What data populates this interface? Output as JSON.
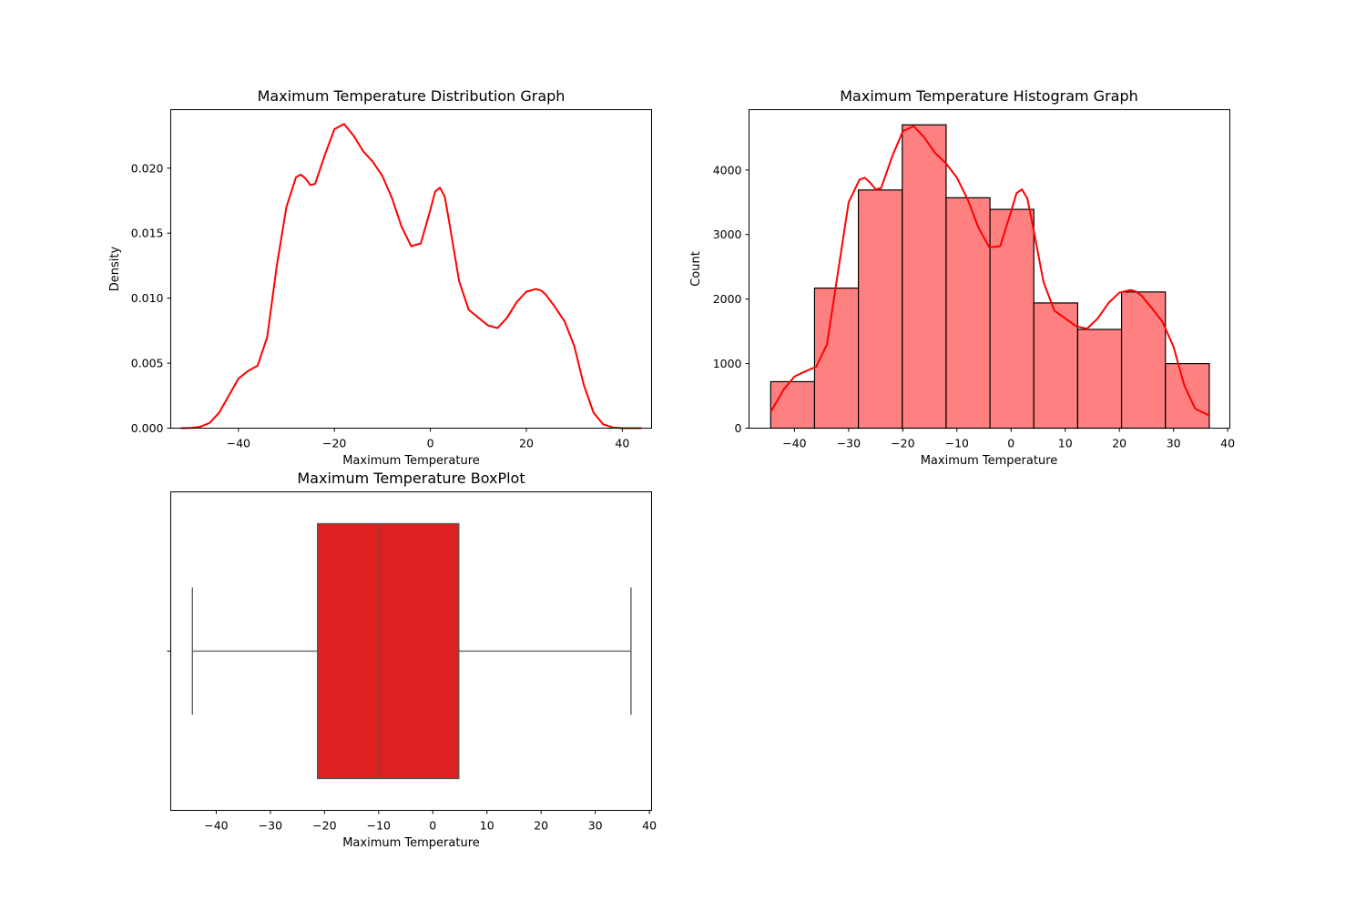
{
  "colors": {
    "kde_line": "#ff0000",
    "hist_fill": "#ff8080",
    "box_fill": "#df2020",
    "box_line": "#555555"
  },
  "chart_data": [
    {
      "type": "line",
      "title": "Maximum Temperature Distribution Graph",
      "xlabel": "Maximum Temperature",
      "ylabel": "Density",
      "xlim": [
        -54.1,
        46.1
      ],
      "ylim": [
        0,
        0.0245
      ],
      "xticks": [
        -40,
        -20,
        0,
        20,
        40
      ],
      "xtick_labels": [
        "−40",
        "−20",
        "0",
        "20",
        "40"
      ],
      "yticks": [
        0,
        0.005,
        0.01,
        0.015,
        0.02
      ],
      "ytick_labels": [
        "0.000",
        "0.005",
        "0.010",
        "0.015",
        "0.020"
      ],
      "grid": false,
      "series": [
        {
          "color": "#ff0000",
          "x": [
            -52,
            -50,
            -48,
            -46,
            -44,
            -42,
            -40,
            -38,
            -36,
            -34,
            -32,
            -30,
            -28,
            -27,
            -26,
            -25,
            -24,
            -22,
            -20,
            -18,
            -16,
            -14,
            -12,
            -10,
            -8,
            -6,
            -4,
            -2,
            0,
            1,
            2,
            3,
            4,
            6,
            8,
            10,
            12,
            14,
            16,
            18,
            20,
            22,
            23,
            24,
            26,
            28,
            30,
            32,
            34,
            36,
            38,
            40,
            42,
            44
          ],
          "y": [
            0.0,
            2e-05,
            0.0001,
            0.0004,
            0.0012,
            0.0025,
            0.0038,
            0.0044,
            0.0048,
            0.007,
            0.0125,
            0.017,
            0.0193,
            0.0195,
            0.0192,
            0.0187,
            0.0188,
            0.021,
            0.023,
            0.0234,
            0.0225,
            0.0213,
            0.0205,
            0.0194,
            0.0177,
            0.0155,
            0.014,
            0.0142,
            0.0168,
            0.0182,
            0.0185,
            0.0178,
            0.0157,
            0.0113,
            0.0091,
            0.0085,
            0.0079,
            0.0077,
            0.0085,
            0.0097,
            0.0105,
            0.0107,
            0.0106,
            0.0103,
            0.0093,
            0.0082,
            0.0063,
            0.0033,
            0.0012,
            0.0003,
            5e-05,
            0.0,
            0.0,
            0.0
          ]
        }
      ]
    },
    {
      "type": "bar",
      "title": "Maximum Temperature Histogram Graph",
      "xlabel": "Maximum Temperature",
      "ylabel": "Count",
      "xlim": [
        -48.4,
        40.4
      ],
      "ylim": [
        0,
        4935
      ],
      "xticks": [
        -40,
        -30,
        -20,
        -10,
        0,
        10,
        20,
        30,
        40
      ],
      "xtick_labels": [
        "−40",
        "−30",
        "−20",
        "−10",
        "0",
        "10",
        "20",
        "30",
        "40"
      ],
      "yticks": [
        0,
        1000,
        2000,
        3000,
        4000
      ],
      "ytick_labels": [
        "0",
        "1000",
        "2000",
        "3000",
        "4000"
      ],
      "grid": false,
      "bin_edges": [
        -44.4,
        -36.3,
        -28.2,
        -20.1,
        -12.0,
        -3.9,
        4.2,
        12.3,
        20.4,
        28.5,
        36.6
      ],
      "values": [
        720,
        2170,
        3690,
        4700,
        3570,
        3390,
        1940,
        1530,
        2110,
        1000
      ],
      "kde": {
        "color": "#ff0000",
        "x": [
          -44.4,
          -42,
          -40,
          -38,
          -36,
          -34,
          -32,
          -30,
          -28,
          -27,
          -26,
          -25,
          -24,
          -22,
          -20,
          -18,
          -16,
          -14,
          -12,
          -10,
          -8,
          -6,
          -4,
          -2,
          0,
          1,
          2,
          3,
          4,
          6,
          8,
          10,
          12,
          14,
          16,
          18,
          20,
          22,
          23,
          24,
          26,
          28,
          30,
          32,
          34,
          36,
          36.6
        ],
        "y": [
          250,
          600,
          800,
          880,
          950,
          1300,
          2400,
          3500,
          3850,
          3880,
          3800,
          3700,
          3720,
          4200,
          4600,
          4680,
          4500,
          4260,
          4100,
          3880,
          3540,
          3100,
          2800,
          2820,
          3360,
          3640,
          3700,
          3560,
          3140,
          2260,
          1820,
          1700,
          1580,
          1540,
          1700,
          1940,
          2100,
          2140,
          2120,
          2060,
          1860,
          1640,
          1260,
          660,
          300,
          220,
          200
        ]
      }
    },
    {
      "type": "box",
      "title": "Maximum Temperature BoxPlot",
      "xlabel": "Maximum Temperature",
      "xlim": [
        -48.4,
        40.4
      ],
      "xticks": [
        -40,
        -30,
        -20,
        -10,
        0,
        10,
        20,
        30,
        40
      ],
      "xtick_labels": [
        "−40",
        "−30",
        "−20",
        "−10",
        "0",
        "10",
        "20",
        "30",
        "40"
      ],
      "grid": false,
      "stats": {
        "whisker_low": -44.4,
        "q1": -21.3,
        "median": -9.9,
        "q3": 4.8,
        "whisker_high": 36.6
      }
    }
  ]
}
